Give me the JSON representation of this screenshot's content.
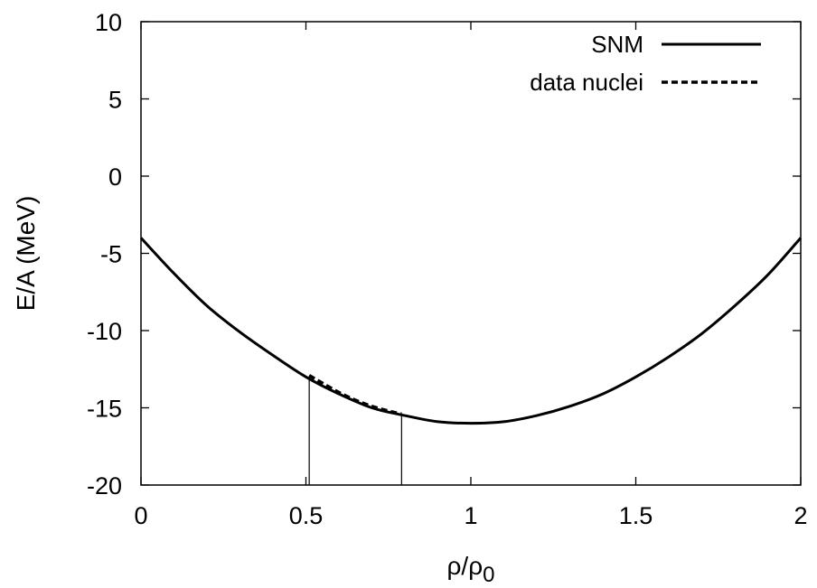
{
  "chart_data": {
    "type": "line",
    "xlabel": "ρ/ρ",
    "xlabel_sub": "0",
    "ylabel": "E/A (MeV)",
    "xlim": [
      0,
      2
    ],
    "ylim": [
      -20,
      10
    ],
    "xticks": [
      0,
      0.5,
      1,
      1.5,
      2
    ],
    "xtick_labels": [
      "0",
      "0.5",
      "1",
      "1.5",
      "2"
    ],
    "yticks": [
      -20,
      -15,
      -10,
      -5,
      0,
      5,
      10
    ],
    "ytick_labels": [
      "-20",
      "-15",
      "-10",
      "-5",
      "0",
      "5",
      "10"
    ],
    "grid": false,
    "legend_position": "top-right",
    "series": [
      {
        "name": "SNM",
        "style": "solid",
        "color": "#000000",
        "x": [
          0,
          0.1,
          0.2,
          0.3,
          0.4,
          0.5,
          0.6,
          0.7,
          0.8,
          0.9,
          1.0,
          1.1,
          1.2,
          1.3,
          1.4,
          1.5,
          1.6,
          1.7,
          1.8,
          1.9,
          2.0
        ],
        "y": [
          -4.0,
          -6.3,
          -8.4,
          -10.1,
          -11.6,
          -13.0,
          -14.1,
          -15.0,
          -15.5,
          -15.9,
          -16.0,
          -15.9,
          -15.5,
          -14.9,
          -14.1,
          -13.0,
          -11.7,
          -10.2,
          -8.4,
          -6.4,
          -4.0
        ]
      },
      {
        "name": "data nuclei",
        "style": "dashed",
        "color": "#000000",
        "x": [
          0.51,
          0.55,
          0.6,
          0.65,
          0.7,
          0.75,
          0.79
        ],
        "y": [
          -12.9,
          -13.4,
          -14.0,
          -14.5,
          -14.9,
          -15.2,
          -15.4
        ]
      }
    ],
    "vertical_markers": [
      {
        "x": 0.51,
        "y_top": -13.0
      },
      {
        "x": 0.79,
        "y_top": -15.4
      }
    ]
  }
}
